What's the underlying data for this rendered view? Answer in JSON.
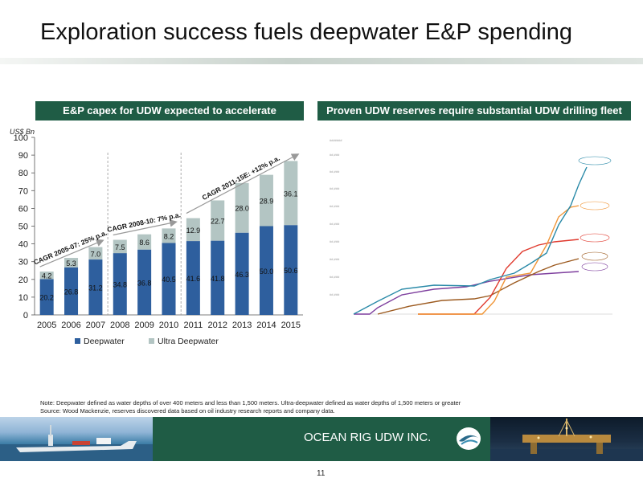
{
  "slide": {
    "title": "Exploration success fuels deepwater E&P spending",
    "left_panel_title": "E&P capex for UDW expected to accelerate",
    "right_panel_title": "Proven UDW reserves require substantial UDW drilling fleet",
    "note_line1": "Note:  Deepwater defined as water depths of over 400 meters and less than 1,500 meters. Ultra-deepwater defined as water depths of 1,500 meters or greater",
    "note_line2": "Source:    Wood Mackenzie, reserves discovered data based on oil industry research reports and company data.",
    "company": "OCEAN RIG UDW INC.",
    "page_number": "11"
  },
  "colors": {
    "header_green": "#1f5c45",
    "deepwater": "#2e5f9e",
    "ultra_deepwater": "#b3c5c3",
    "arrow": "#999999"
  },
  "chart_data": [
    {
      "type": "bar",
      "stacked": true,
      "title": "E&P capex for UDW expected to accelerate",
      "ylabel": "US$ Bn",
      "ylim": [
        0,
        100
      ],
      "yticks": [
        0,
        10,
        20,
        30,
        40,
        50,
        60,
        70,
        80,
        90,
        100
      ],
      "categories": [
        "2005",
        "2006",
        "2007",
        "2008",
        "2009",
        "2010",
        "2011",
        "2012",
        "2013",
        "2014",
        "2015"
      ],
      "series": [
        {
          "name": "Deepwater",
          "color": "#2e5f9e",
          "values": [
            20.2,
            26.8,
            31.2,
            34.8,
            36.8,
            40.5,
            41.6,
            41.8,
            46.3,
            50.0,
            50.6
          ]
        },
        {
          "name": "Ultra Deepwater",
          "color": "#b3c5c3",
          "values": [
            4.2,
            5.3,
            7.0,
            7.5,
            8.6,
            8.2,
            12.9,
            22.7,
            28.0,
            28.9,
            36.1
          ]
        }
      ],
      "labels": {
        "Deepwater": [
          "20.2",
          "26.8",
          "31.2",
          "34.8",
          "36.8",
          "40.5",
          "41.6",
          "41.8",
          "46.3",
          "50.0",
          "50.6"
        ],
        "Ultra Deepwater": [
          "4.2",
          "5.3",
          "7.0",
          "7.5",
          "8.6",
          "8.2",
          "12.9",
          "22.7",
          "28.0",
          "28.9",
          "36.1"
        ]
      },
      "annotations": [
        {
          "text": "CAGR 2005-07: 25% p.a.",
          "from": "2005",
          "to": "2007"
        },
        {
          "text": "CAGR 2008-10: 7% p.a.",
          "from": "2008",
          "to": "2010"
        },
        {
          "text": "CAGR 2011-15E: +12% p.a.",
          "from": "2011",
          "to": "2015"
        }
      ],
      "dividers_after": [
        "2007",
        "2010"
      ],
      "legend": "bottom",
      "grid": false
    }
  ]
}
